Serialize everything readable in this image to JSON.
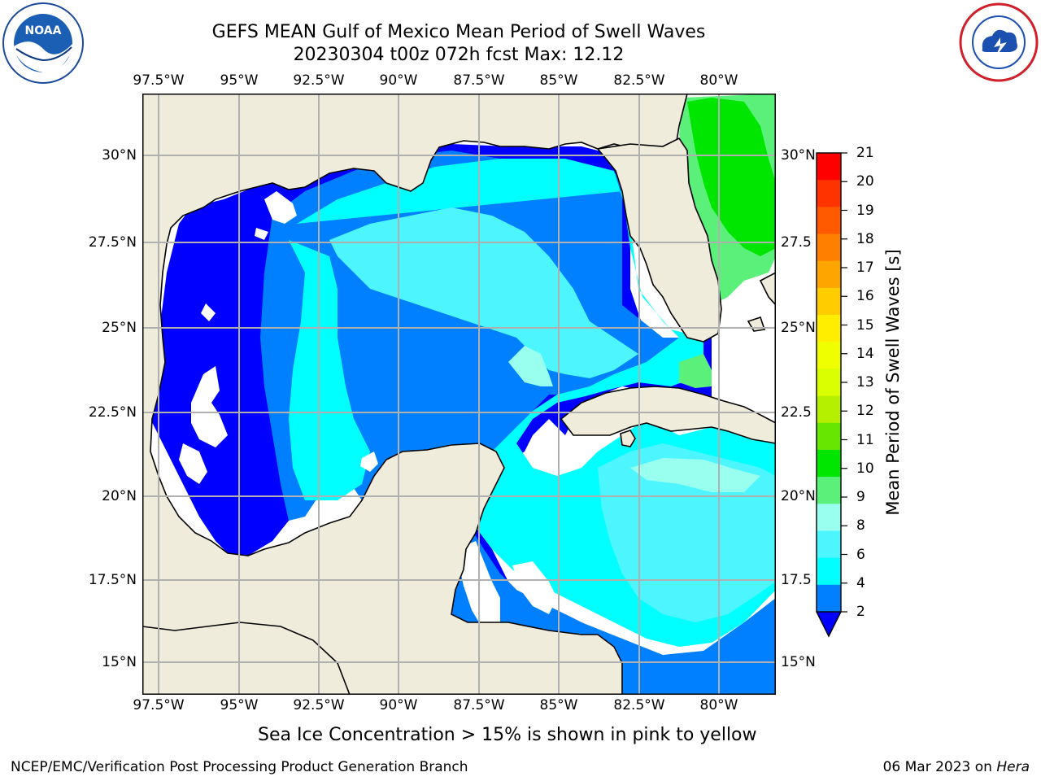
{
  "title": {
    "line1": "GEFS MEAN Gulf of Mexico Mean Period of Swell Waves",
    "line2": "20230304 t00z 072h fcst   Max: 12.12"
  },
  "logos": {
    "left": "noaa-logo",
    "right": "nws-logo"
  },
  "map": {
    "lon_labels": [
      "97.5°W",
      "95°W",
      "92.5°W",
      "90°W",
      "87.5°W",
      "85°W",
      "82.5°W",
      "80°W"
    ],
    "lat_labels_left": [
      "30°N",
      "27.5°N",
      "25°N",
      "22.5°N",
      "20°N",
      "17.5°N",
      "15°N"
    ],
    "lat_labels_right": [
      "30°N",
      "27.5",
      "25°N",
      "22.5",
      "20°N",
      "17.5",
      "15°N"
    ],
    "colors": {
      "land": "#efecdc",
      "grid": "#b0b0b0",
      "coast": "#000000"
    }
  },
  "colorbar": {
    "label": "Mean Period of Swell Waves [s]",
    "ticks": [
      "21",
      "20",
      "19",
      "18",
      "17",
      "16",
      "15",
      "14",
      "13",
      "12",
      "11",
      "10",
      "9",
      "8",
      "6",
      "4",
      "2"
    ],
    "colors_top_to_bottom": [
      "#ff0000",
      "#ff3300",
      "#ff5a00",
      "#ff7f00",
      "#ffa500",
      "#ffcc00",
      "#ffee00",
      "#f0ff00",
      "#d9ff00",
      "#b5f000",
      "#66e600",
      "#00e600",
      "#5af07a",
      "#99ffee",
      "#4df5ff",
      "#00ffff",
      "#0080ff"
    ],
    "under_color": "#0000ff"
  },
  "footer": {
    "note": "Sea Ice Concentration > 15% is shown in pink to yellow",
    "credit": "NCEP/EMC/Verification Post Processing Product Generation Branch",
    "date_prefix": "06 Mar 2023 on ",
    "date_host": "Hera"
  }
}
